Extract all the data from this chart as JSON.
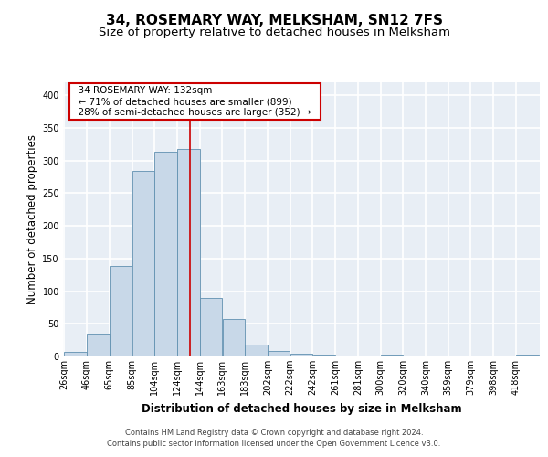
{
  "title": "34, ROSEMARY WAY, MELKSHAM, SN12 7FS",
  "subtitle": "Size of property relative to detached houses in Melksham",
  "xlabel": "Distribution of detached houses by size in Melksham",
  "ylabel": "Number of detached properties",
  "bar_labels": [
    "26sqm",
    "46sqm",
    "65sqm",
    "85sqm",
    "104sqm",
    "124sqm",
    "144sqm",
    "163sqm",
    "183sqm",
    "202sqm",
    "222sqm",
    "242sqm",
    "261sqm",
    "281sqm",
    "300sqm",
    "320sqm",
    "340sqm",
    "359sqm",
    "379sqm",
    "398sqm",
    "418sqm"
  ],
  "bar_heights": [
    7,
    35,
    138,
    284,
    314,
    318,
    90,
    57,
    18,
    9,
    4,
    3,
    2,
    0,
    3,
    0,
    1,
    0,
    0,
    0,
    3
  ],
  "bar_color": "#c8d8e8",
  "bar_edge_color": "#6090b0",
  "property_line_x": 132,
  "property_line_color": "#cc0000",
  "annotation_title": "34 ROSEMARY WAY: 132sqm",
  "annotation_line1": "← 71% of detached houses are smaller (899)",
  "annotation_line2": "28% of semi-detached houses are larger (352) →",
  "annotation_box_color": "#ffffff",
  "annotation_box_edge": "#cc0000",
  "ylim": [
    0,
    420
  ],
  "yticks": [
    0,
    50,
    100,
    150,
    200,
    250,
    300,
    350,
    400
  ],
  "footer_line1": "Contains HM Land Registry data © Crown copyright and database right 2024.",
  "footer_line2": "Contains public sector information licensed under the Open Government Licence v3.0.",
  "bg_color": "#ffffff",
  "plot_bg_color": "#e8eef5",
  "grid_color": "#ffffff",
  "title_fontsize": 11,
  "subtitle_fontsize": 9.5,
  "axis_label_fontsize": 8.5,
  "tick_fontsize": 7,
  "footer_fontsize": 6,
  "bin_width": 19
}
